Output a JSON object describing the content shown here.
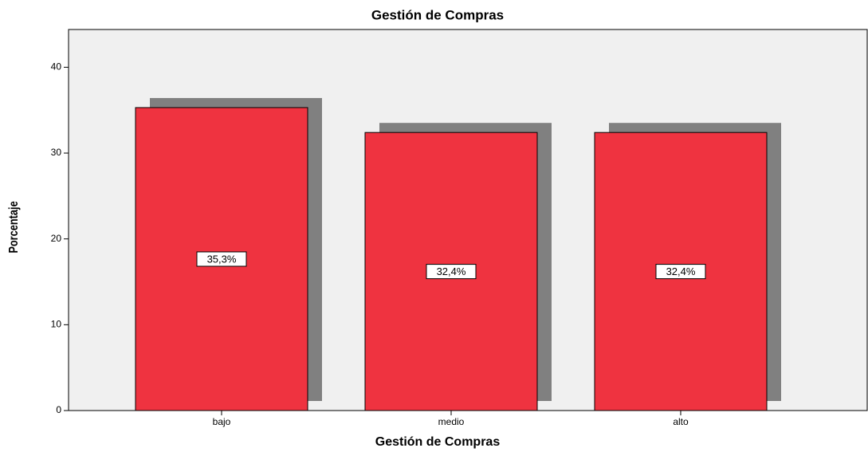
{
  "chart_data": {
    "type": "bar",
    "title": "Gestión de Compras",
    "x_label": "Gestión de Compras",
    "y_label": "Porcentaje",
    "categories": [
      "bajo",
      "medio",
      "alto"
    ],
    "values": [
      35.3,
      32.4,
      32.4
    ],
    "value_labels": [
      "35,3%",
      "32,4%",
      "32,4%"
    ],
    "color": "#ef3340",
    "shadow_color": "#808080",
    "ylim": [
      0,
      44.4
    ],
    "yticks": [
      0,
      10,
      20,
      30,
      40
    ]
  }
}
